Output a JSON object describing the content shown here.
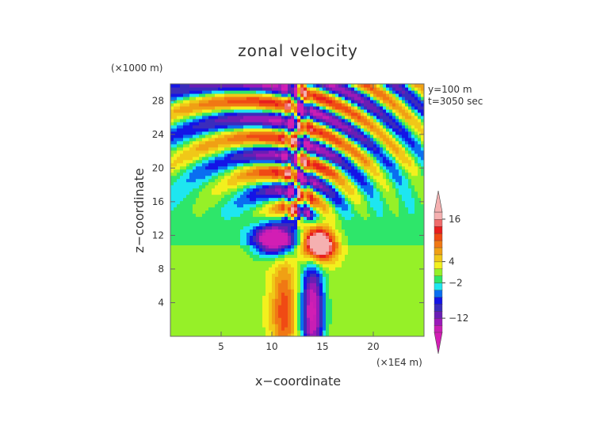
{
  "chart_data": {
    "type": "heatmap",
    "title": "zonal velocity",
    "xlabel": "x−coordinate",
    "ylabel": "z−coordinate",
    "x_unit": "(×1E4 m)",
    "y_unit": "(×1000 m)",
    "info": [
      "y=100 m",
      "t=3050 sec"
    ],
    "xlim": [
      0,
      25
    ],
    "ylim": [
      0,
      30
    ],
    "x_ticks": [
      5,
      10,
      15,
      20
    ],
    "y_ticks": [
      4,
      8,
      12,
      16,
      20,
      24,
      28
    ],
    "colorbar": {
      "levels": [
        -16,
        -14,
        -12,
        -10,
        -8,
        -6,
        -4,
        -2,
        0,
        2,
        4,
        6,
        8,
        10,
        12,
        14,
        16,
        18
      ],
      "colors": [
        "#c81eb4",
        "#9a1ab8",
        "#6a1eb4",
        "#3a2cbc",
        "#1414e6",
        "#0a6ef0",
        "#1ee6f0",
        "#2ee66a",
        "#96f028",
        "#f2f01e",
        "#f0c818",
        "#f0a014",
        "#f07814",
        "#f04a14",
        "#e81e1e",
        "#f06c6c",
        "#f5b0b0"
      ],
      "labels": [
        16,
        4,
        -2,
        -12
      ],
      "extend": "both",
      "under_color": "#d21eb4",
      "over_color": "#f5b0b0"
    },
    "grid": false
  }
}
